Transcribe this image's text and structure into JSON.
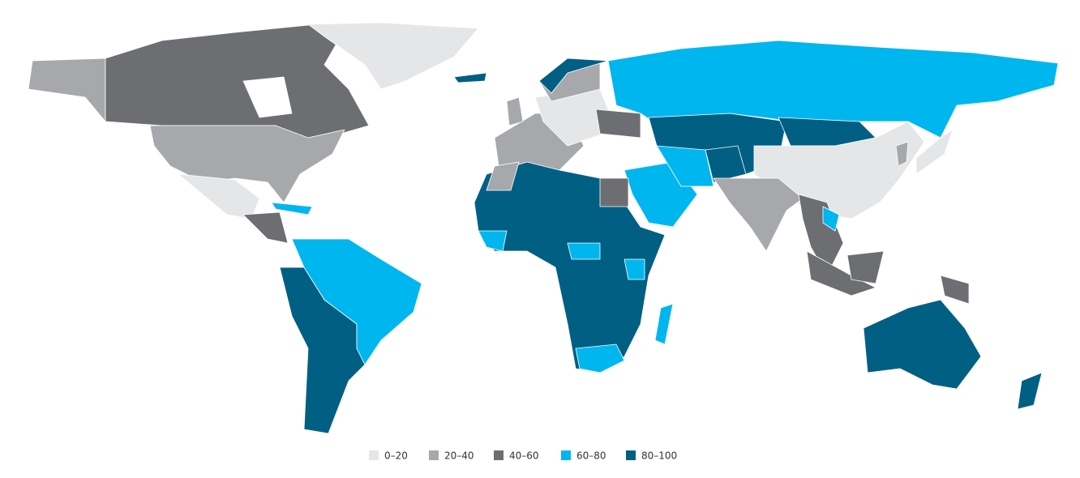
{
  "map": {
    "legend": [
      {
        "label": "0–20",
        "color": "#e5e6e8"
      },
      {
        "label": "20–40",
        "color": "#a7a8ab"
      },
      {
        "label": "40–60",
        "color": "#6d6e71"
      },
      {
        "label": "60–80",
        "color": "#00b6ef"
      },
      {
        "label": "80–100",
        "color": "#005f83"
      }
    ]
  }
}
